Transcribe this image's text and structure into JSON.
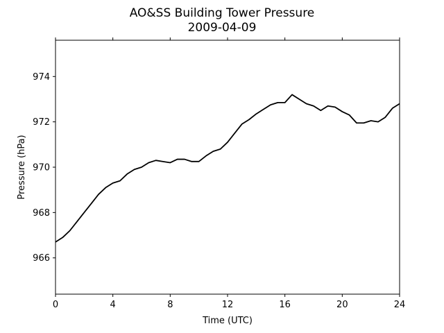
{
  "chart_data": {
    "type": "line",
    "title": "AO&SS Building Tower Pressure",
    "subtitle": "2009-04-09",
    "xlabel": "Time (UTC)",
    "ylabel": "Pressure (hPa)",
    "xlim": [
      0,
      24
    ],
    "ylim": [
      964.4,
      975.6
    ],
    "xticks": [
      0,
      4,
      8,
      12,
      16,
      20,
      24
    ],
    "yticks": [
      966,
      968,
      970,
      972,
      974
    ],
    "grid": false,
    "legend": "none",
    "line_color": "#000000",
    "series": [
      {
        "x": [
          0,
          0.5,
          1,
          1.5,
          2,
          2.5,
          3,
          3.5,
          4,
          4.5,
          5,
          5.5,
          6,
          6.5,
          7,
          7.5,
          8,
          8.5,
          9,
          9.5,
          10,
          10.5,
          11,
          11.5,
          12,
          12.5,
          13,
          13.5,
          14,
          14.5,
          15,
          15.5,
          16,
          16.5,
          17,
          17.5,
          18,
          18.5,
          19,
          19.5,
          20,
          20.5,
          21,
          21.5,
          22,
          22.5,
          23,
          23.5,
          24
        ],
        "y": [
          966.7,
          966.9,
          967.2,
          967.6,
          968.0,
          968.4,
          968.8,
          969.1,
          969.3,
          969.4,
          969.7,
          969.9,
          970.0,
          970.2,
          970.3,
          970.25,
          970.2,
          970.35,
          970.35,
          970.25,
          970.25,
          970.5,
          970.7,
          970.8,
          971.1,
          971.5,
          971.9,
          972.1,
          972.35,
          972.55,
          972.75,
          972.85,
          972.85,
          973.2,
          973.0,
          972.8,
          972.7,
          972.5,
          972.7,
          972.65,
          972.45,
          972.3,
          971.95,
          971.95,
          972.05,
          972.0,
          972.2,
          972.6,
          972.8
        ]
      }
    ]
  }
}
